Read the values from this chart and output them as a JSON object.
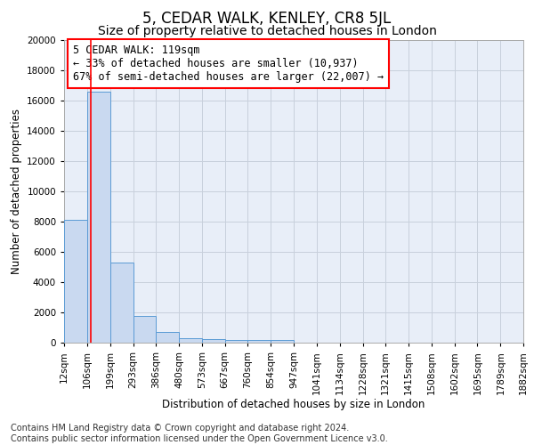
{
  "title1": "5, CEDAR WALK, KENLEY, CR8 5JL",
  "title2": "Size of property relative to detached houses in London",
  "xlabel": "Distribution of detached houses by size in London",
  "ylabel": "Number of detached properties",
  "bin_edges": [
    12,
    106,
    199,
    293,
    386,
    480,
    573,
    667,
    760,
    854,
    947,
    1041,
    1134,
    1228,
    1321,
    1415,
    1508,
    1602,
    1695,
    1789,
    1882
  ],
  "bin_labels": [
    "12sqm",
    "106sqm",
    "199sqm",
    "293sqm",
    "386sqm",
    "480sqm",
    "573sqm",
    "667sqm",
    "760sqm",
    "854sqm",
    "947sqm",
    "1041sqm",
    "1134sqm",
    "1228sqm",
    "1321sqm",
    "1415sqm",
    "1508sqm",
    "1602sqm",
    "1695sqm",
    "1789sqm",
    "1882sqm"
  ],
  "counts": [
    8100,
    16600,
    5300,
    1750,
    700,
    320,
    250,
    200,
    175,
    150,
    0,
    0,
    0,
    0,
    0,
    0,
    0,
    0,
    0,
    0
  ],
  "bar_color": "#c9d9f0",
  "bar_edge_color": "#5b9bd5",
  "red_line_x": 119,
  "annotation_line1": "5 CEDAR WALK: 119sqm",
  "annotation_line2": "← 33% of detached houses are smaller (10,937)",
  "annotation_line3": "67% of semi-detached houses are larger (22,007) →",
  "annotation_box_color": "white",
  "annotation_box_edge": "red",
  "ylim": [
    0,
    20000
  ],
  "yticks": [
    0,
    2000,
    4000,
    6000,
    8000,
    10000,
    12000,
    14000,
    16000,
    18000,
    20000
  ],
  "grid_color": "#c8d0dc",
  "background_color": "#e8eef8",
  "footer_text": "Contains HM Land Registry data © Crown copyright and database right 2024.\nContains public sector information licensed under the Open Government Licence v3.0.",
  "title1_fontsize": 12,
  "title2_fontsize": 10,
  "axis_label_fontsize": 8.5,
  "tick_fontsize": 7.5,
  "annotation_fontsize": 8.5,
  "footer_fontsize": 7
}
